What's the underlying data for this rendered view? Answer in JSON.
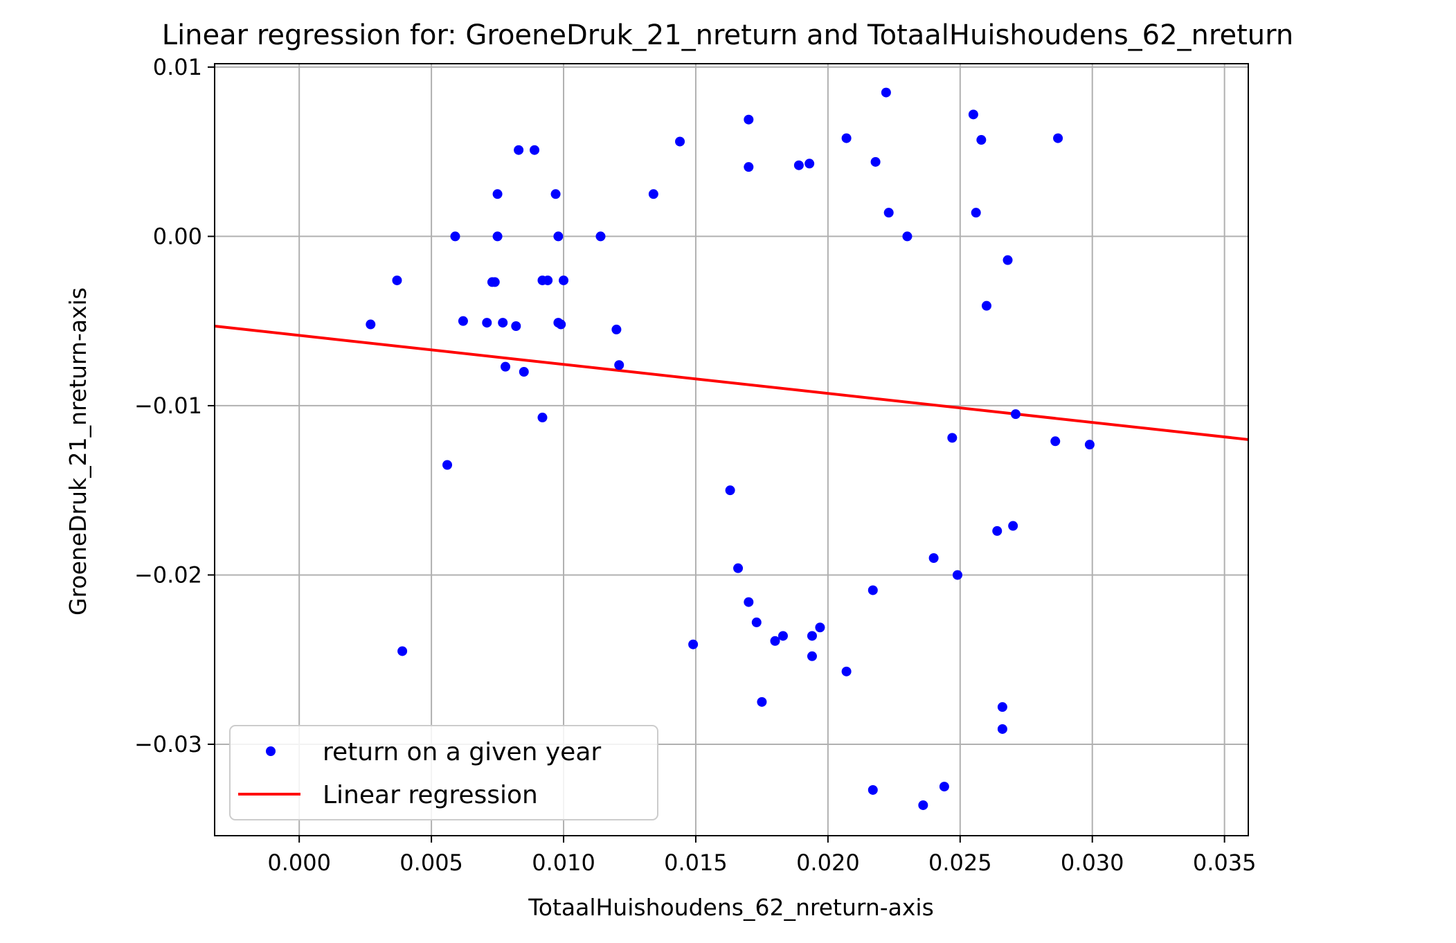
{
  "chart_data": {
    "type": "scatter",
    "title": "Linear regression for: GroeneDruk_21_nreturn and TotaalHuishoudens_62_nreturn",
    "xlabel": "TotaalHuishoudens_62_nreturn-axis",
    "ylabel": "GroeneDruk_21_nreturn-axis",
    "xlim": [
      -0.0032,
      0.0359
    ],
    "ylim": [
      -0.0354,
      0.0102
    ],
    "xticks": [
      0.0,
      0.005,
      0.01,
      0.015,
      0.02,
      0.025,
      0.03,
      0.035
    ],
    "xtick_labels": [
      "0.000",
      "0.005",
      "0.010",
      "0.015",
      "0.020",
      "0.025",
      "0.030",
      "0.035"
    ],
    "yticks": [
      0.01,
      0.0,
      -0.01,
      -0.02,
      -0.03
    ],
    "ytick_labels": [
      "0.01",
      "0.00",
      "−0.01",
      "−0.02",
      "−0.03"
    ],
    "grid": true,
    "legend_position": "lower-left",
    "colors": {
      "points": "#0000ff",
      "line": "#ff0000",
      "grid": "#b0b0b0"
    },
    "series": [
      {
        "name": "return on a given year",
        "kind": "scatter",
        "points": [
          [
            0.0027,
            -0.0052
          ],
          [
            0.0037,
            -0.0026
          ],
          [
            0.0039,
            -0.0245
          ],
          [
            0.0056,
            -0.0135
          ],
          [
            0.0059,
            0.0
          ],
          [
            0.0062,
            -0.005
          ],
          [
            0.0071,
            -0.0051
          ],
          [
            0.0073,
            -0.0027
          ],
          [
            0.0074,
            -0.0027
          ],
          [
            0.0075,
            0.0025
          ],
          [
            0.0075,
            0.0
          ],
          [
            0.0077,
            -0.0051
          ],
          [
            0.0078,
            -0.0077
          ],
          [
            0.0082,
            -0.0053
          ],
          [
            0.0083,
            0.0051
          ],
          [
            0.0085,
            -0.008
          ],
          [
            0.0089,
            0.0051
          ],
          [
            0.0092,
            -0.0107
          ],
          [
            0.0092,
            -0.0026
          ],
          [
            0.0094,
            -0.0026
          ],
          [
            0.0097,
            0.0025
          ],
          [
            0.0098,
            0.0
          ],
          [
            0.0098,
            -0.0051
          ],
          [
            0.0099,
            -0.0052
          ],
          [
            0.01,
            -0.0026
          ],
          [
            0.0114,
            0.0
          ],
          [
            0.012,
            -0.0055
          ],
          [
            0.0121,
            -0.0076
          ],
          [
            0.0134,
            0.0025
          ],
          [
            0.0144,
            0.0056
          ],
          [
            0.0149,
            -0.0241
          ],
          [
            0.0163,
            -0.015
          ],
          [
            0.0166,
            -0.0196
          ],
          [
            0.017,
            0.0069
          ],
          [
            0.017,
            0.0041
          ],
          [
            0.017,
            -0.0216
          ],
          [
            0.0173,
            -0.0228
          ],
          [
            0.0175,
            -0.0275
          ],
          [
            0.018,
            -0.0239
          ],
          [
            0.0183,
            -0.0236
          ],
          [
            0.0189,
            0.0042
          ],
          [
            0.0193,
            0.0043
          ],
          [
            0.0194,
            -0.0236
          ],
          [
            0.0194,
            -0.0248
          ],
          [
            0.0197,
            -0.0231
          ],
          [
            0.0207,
            0.0058
          ],
          [
            0.0207,
            -0.0257
          ],
          [
            0.0217,
            -0.0209
          ],
          [
            0.0217,
            -0.0327
          ],
          [
            0.0218,
            0.0044
          ],
          [
            0.0222,
            0.0085
          ],
          [
            0.0223,
            0.0014
          ],
          [
            0.023,
            0.0
          ],
          [
            0.0236,
            -0.0336
          ],
          [
            0.024,
            -0.019
          ],
          [
            0.0244,
            -0.0325
          ],
          [
            0.0247,
            -0.0119
          ],
          [
            0.0249,
            -0.02
          ],
          [
            0.0255,
            0.0072
          ],
          [
            0.0256,
            0.0014
          ],
          [
            0.0258,
            0.0057
          ],
          [
            0.026,
            -0.0041
          ],
          [
            0.0264,
            -0.0174
          ],
          [
            0.0266,
            -0.0278
          ],
          [
            0.0266,
            -0.0291
          ],
          [
            0.0268,
            -0.0014
          ],
          [
            0.027,
            -0.0171
          ],
          [
            0.0271,
            -0.0105
          ],
          [
            0.0286,
            -0.0121
          ],
          [
            0.0287,
            0.0058
          ],
          [
            0.0299,
            -0.0123
          ]
        ]
      },
      {
        "name": "Linear regression",
        "kind": "line",
        "x": [
          -0.0032,
          0.0359
        ],
        "y": [
          -0.0053,
          -0.012
        ]
      }
    ]
  }
}
